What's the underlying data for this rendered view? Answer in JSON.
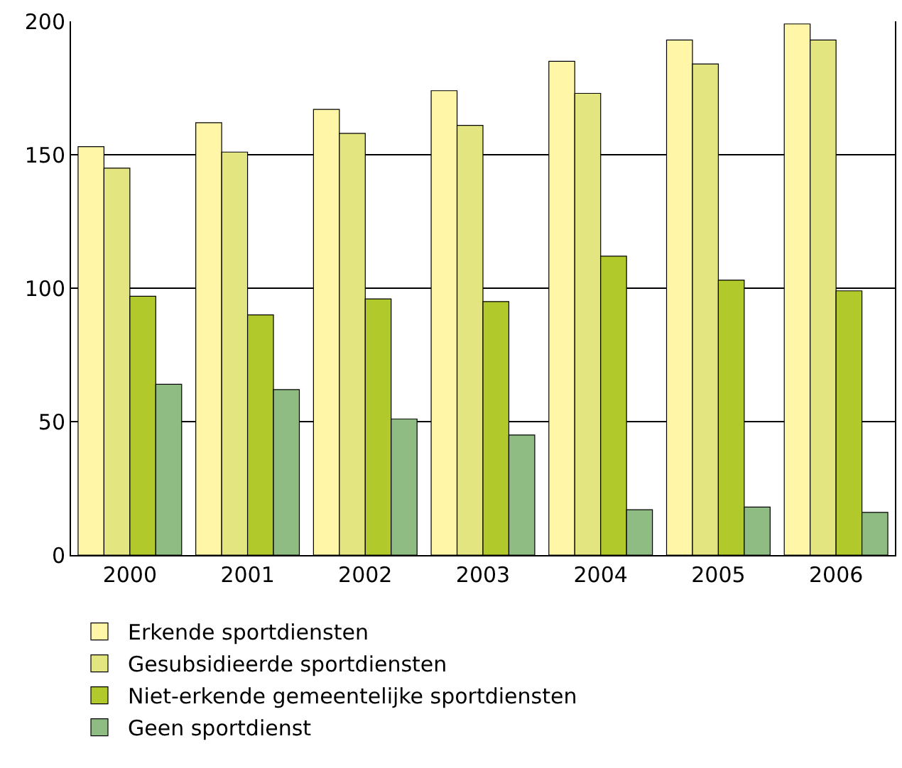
{
  "chart_data": {
    "type": "bar",
    "categories": [
      "2000",
      "2001",
      "2002",
      "2003",
      "2004",
      "2005",
      "2006"
    ],
    "series": [
      {
        "name": "Erkende sportdiensten",
        "color": "#fff6a8",
        "values": [
          153,
          162,
          167,
          174,
          185,
          193,
          199
        ]
      },
      {
        "name": "Gesubsidieerde sportdiensten",
        "color": "#e3e580",
        "values": [
          145,
          151,
          158,
          161,
          173,
          184,
          193
        ]
      },
      {
        "name": "Niet-erkende gemeentelijke sportdiensten",
        "color": "#b2c92c",
        "values": [
          97,
          90,
          96,
          95,
          112,
          103,
          99
        ]
      },
      {
        "name": "Geen sportdienst",
        "color": "#8fbc82",
        "values": [
          64,
          62,
          51,
          45,
          17,
          18,
          16
        ]
      }
    ],
    "ylim": [
      0,
      200
    ],
    "yticks": [
      0,
      50,
      100,
      150,
      200
    ],
    "grid": "y",
    "legend": "bottom"
  }
}
